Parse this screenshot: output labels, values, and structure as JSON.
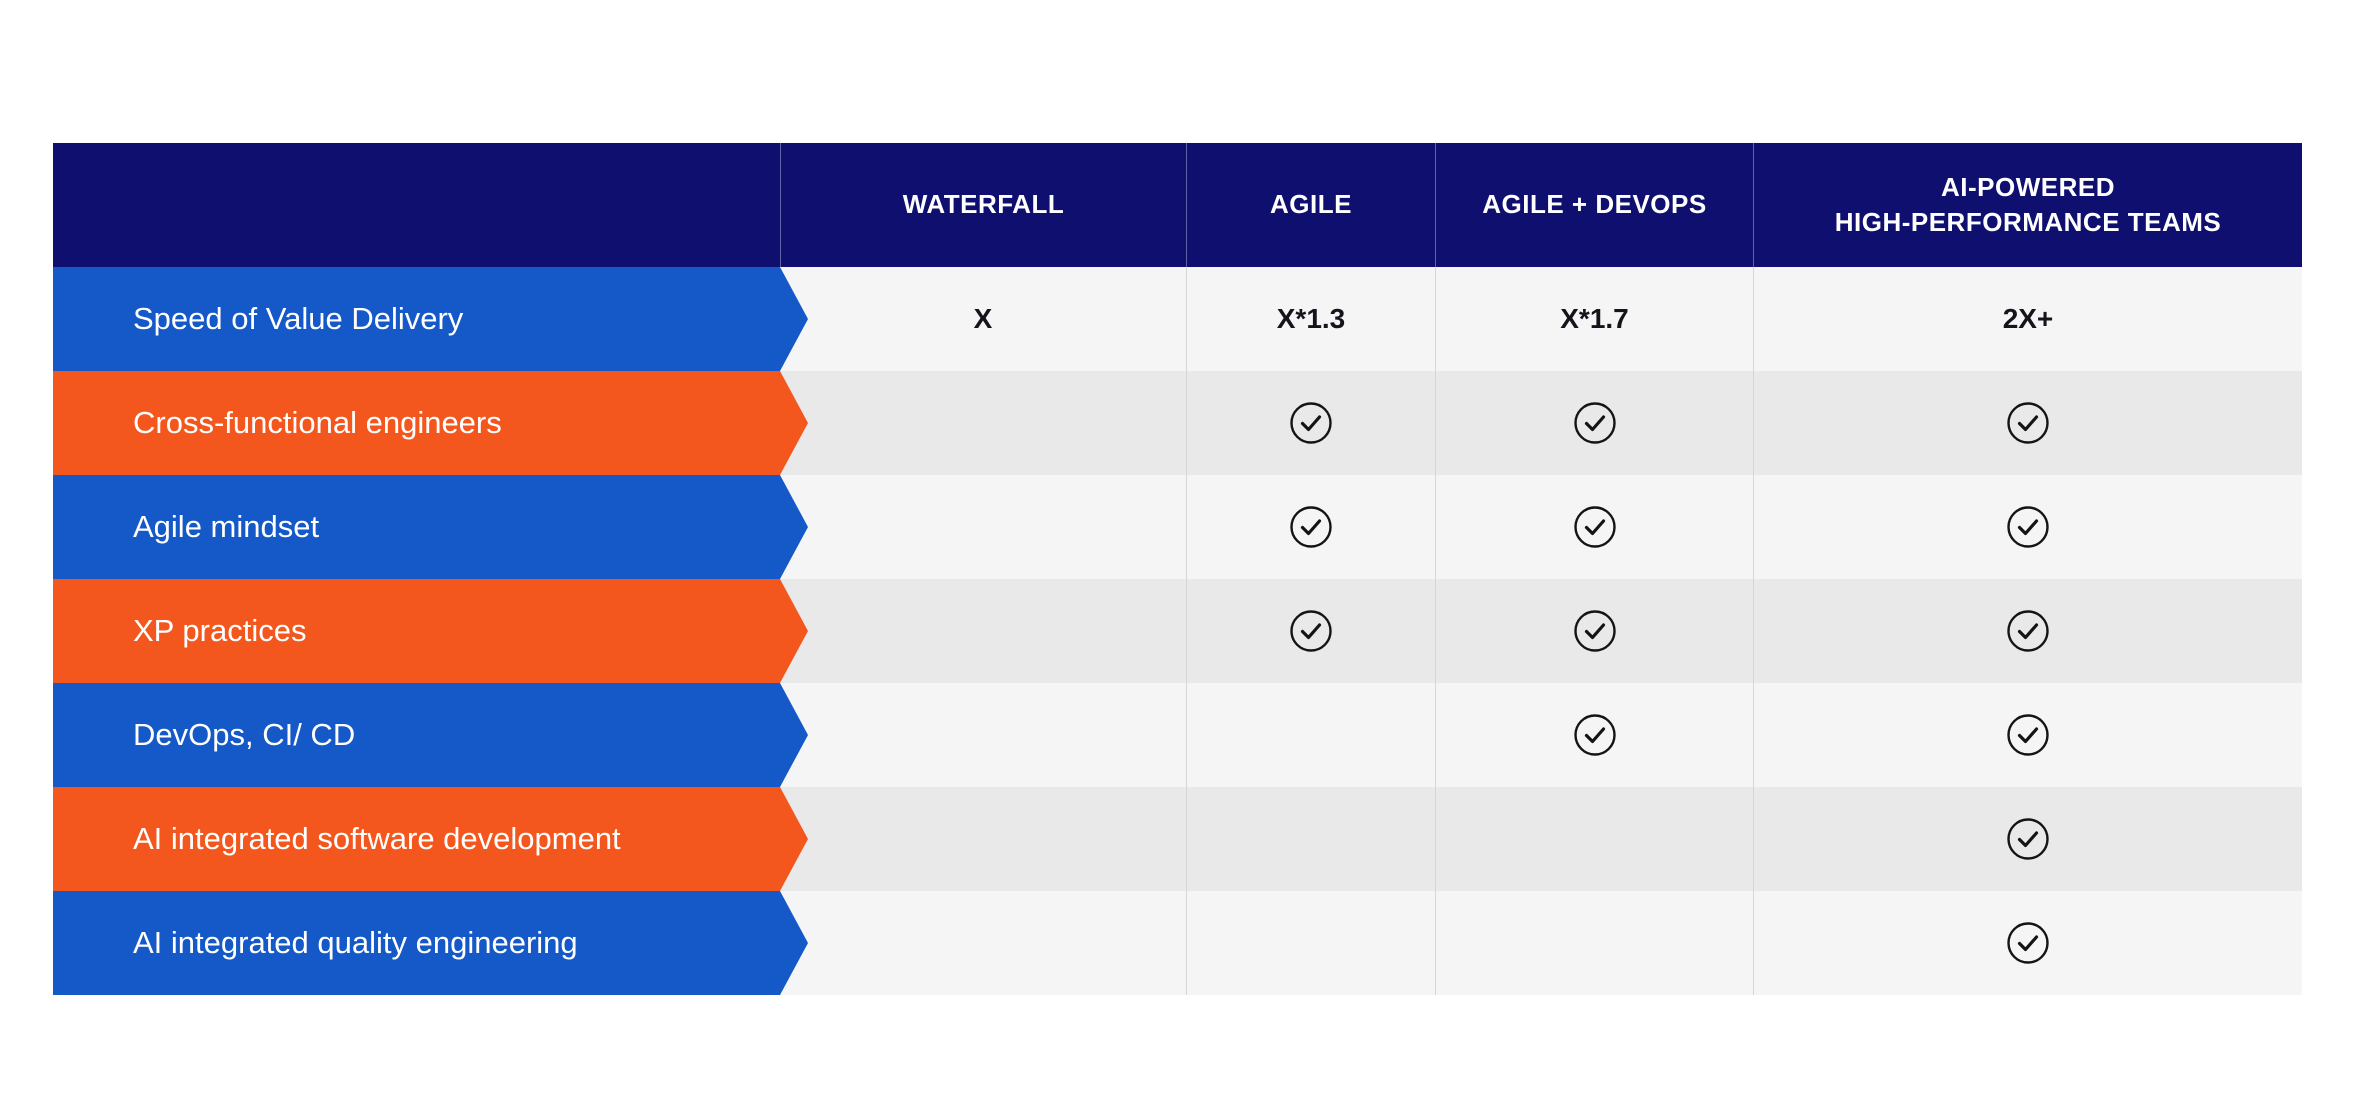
{
  "chart_data": {
    "type": "table",
    "title": "",
    "columns": [
      "WATERFALL",
      "AGILE",
      "AGILE + DEVOPS",
      "AI-POWERED\nHIGH-PERFORMANCE TEAMS"
    ],
    "rows": [
      {
        "label": "Speed of Value Delivery",
        "accent": "blue",
        "values": [
          "X",
          "X*1.3",
          "X*1.7",
          "2X+"
        ]
      },
      {
        "label": "Cross-functional engineers",
        "accent": "orange",
        "values": [
          "",
          "check",
          "check",
          "check"
        ]
      },
      {
        "label": "Agile mindset",
        "accent": "blue",
        "values": [
          "",
          "check",
          "check",
          "check"
        ]
      },
      {
        "label": "XP practices",
        "accent": "orange",
        "values": [
          "",
          "check",
          "check",
          "check"
        ]
      },
      {
        "label": "DevOps, CI/ CD",
        "accent": "blue",
        "values": [
          "",
          "",
          "check",
          "check"
        ]
      },
      {
        "label": "AI integrated software development",
        "accent": "orange",
        "values": [
          "",
          "",
          "",
          "check"
        ]
      },
      {
        "label": "AI integrated quality engineering",
        "accent": "blue",
        "values": [
          "",
          "",
          "",
          "check"
        ]
      }
    ],
    "check_symbol": "circled-checkmark",
    "legend_position": "none",
    "grid": "column-dividers"
  },
  "colors": {
    "header_bg": "#0F0F70",
    "blue_row": "#1459C7",
    "orange_row": "#F4571D",
    "row_bg_light": "#F5F5F5",
    "row_bg_dark": "#E9E9E9",
    "divider": "#D6D6D6",
    "value_text": "#14141C",
    "check": "#141414",
    "page_bg": "#FFFFFF"
  }
}
